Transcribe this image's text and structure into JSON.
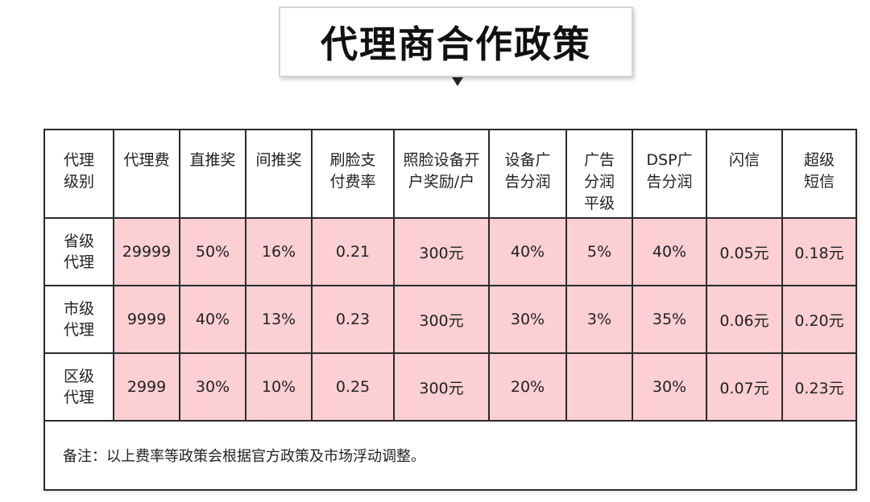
{
  "title": "代理商合作政策",
  "headers": [
    "代理\n级别",
    "代理费",
    "直推奖",
    "间推奖",
    "刷脸支\n付费率",
    "照脸设备开\n户奖励/户",
    "设备广\n告分润",
    "广告\n分润\n平级",
    "DSP广\n告分润",
    "闪信",
    "超级\n短信"
  ],
  "rows": [
    {
      "level": "省级\n代理",
      "cells": [
        "29999",
        "50%",
        "16%",
        "0.21",
        "300元",
        "40%",
        "5%",
        "40%",
        "0.05元",
        "0.18元"
      ]
    },
    {
      "level": "市级\n代理",
      "cells": [
        "9999",
        "40%",
        "13%",
        "0.23",
        "300元",
        "30%",
        "3%",
        "35%",
        "0.06元",
        "0.20元"
      ]
    },
    {
      "level": "区级\n代理",
      "cells": [
        "2999",
        "30%",
        "10%",
        "0.25",
        "300元",
        "20%",
        "",
        "30%",
        "0.07元",
        "0.23元"
      ]
    }
  ],
  "note": "备注：以上费率等政策会根据官方政策及市场浮动调整。",
  "colors": {
    "data_bg": "#fbcfd3",
    "border": "#2a2a2a"
  }
}
